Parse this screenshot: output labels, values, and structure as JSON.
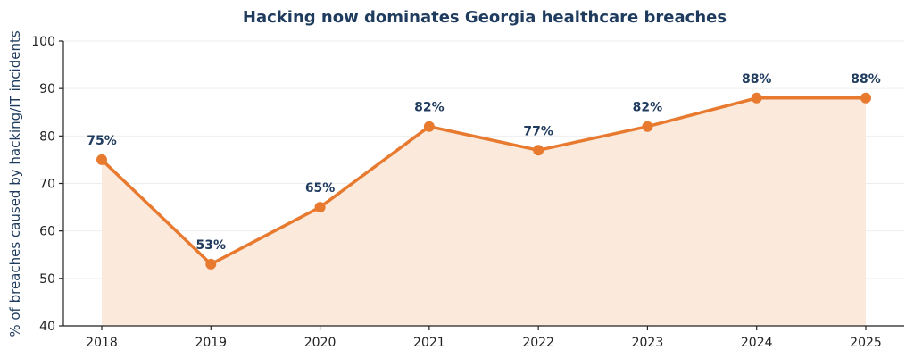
{
  "chart_data": {
    "type": "area",
    "title": "Hacking now dominates Georgia healthcare breaches",
    "xlabel": "",
    "ylabel": "% of breaches caused by hacking/IT incidents",
    "x": [
      "2018",
      "2019",
      "2020",
      "2021",
      "2022",
      "2023",
      "2024",
      "2025"
    ],
    "values": [
      75,
      53,
      65,
      82,
      77,
      82,
      88,
      88
    ],
    "data_labels": [
      "75%",
      "53%",
      "65%",
      "82%",
      "77%",
      "82%",
      "88%",
      "88%"
    ],
    "yticks": [
      40,
      50,
      60,
      70,
      80,
      90,
      100
    ],
    "ylim": [
      40,
      100
    ],
    "grid": true,
    "legend": "none",
    "colors": {
      "line": "#e87a30",
      "fill": "#fbe9dc",
      "title": "#1f3b5e"
    }
  }
}
